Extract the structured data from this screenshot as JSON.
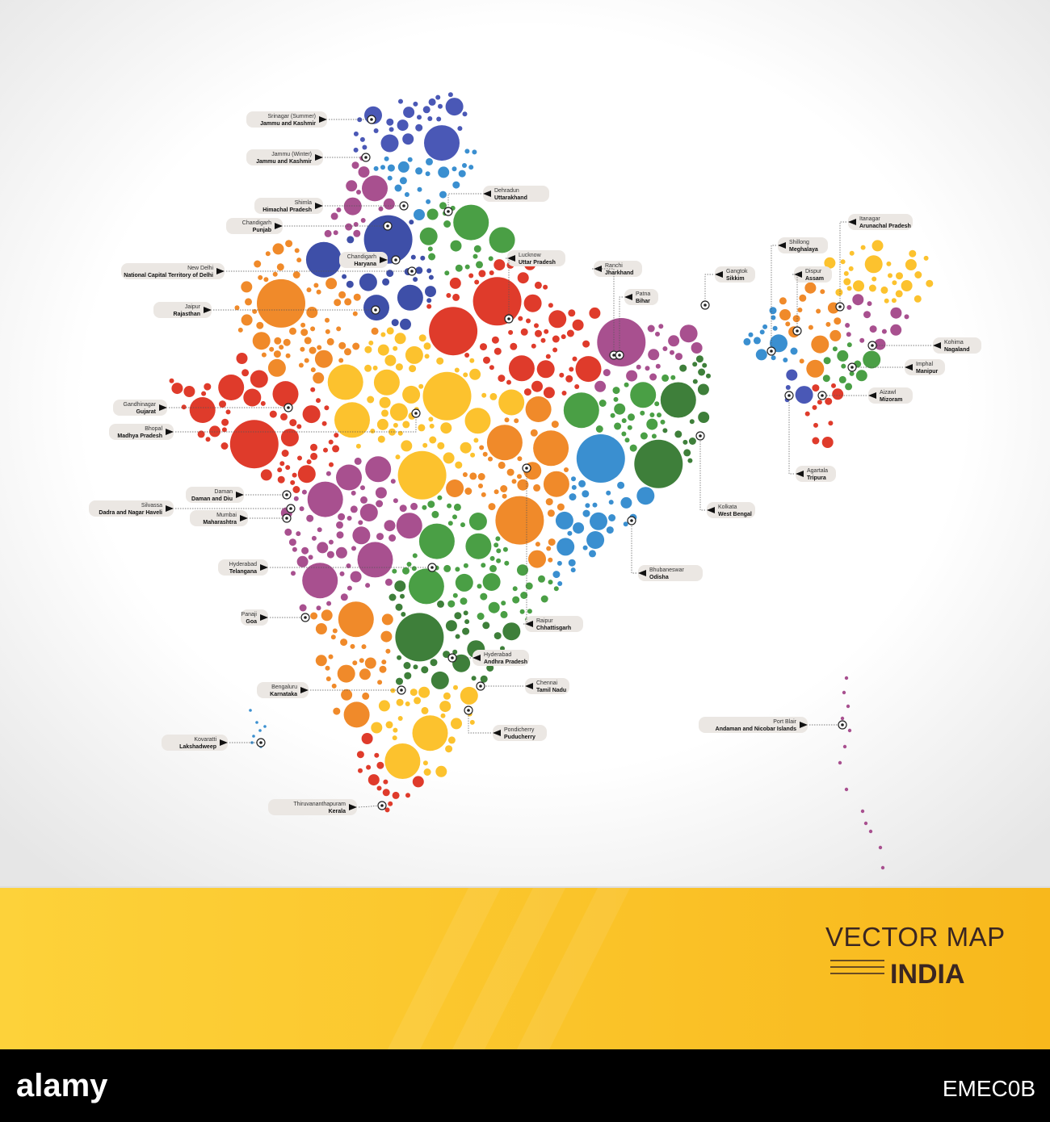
{
  "title": "VECTOR MAP",
  "subtitle": "INDIA",
  "labels": [
    {
      "capital": "Srinagar (Summer)",
      "state": "Jammu and Kashmir"
    },
    {
      "capital": "Jammu (Winter)",
      "state": "Jammu and Kashmir"
    },
    {
      "capital": "Dehradun",
      "state": "Uttarakhand"
    },
    {
      "capital": "Shimla",
      "state": "Himachal Pradesh"
    },
    {
      "capital": "Chandigarh",
      "state": "Punjab"
    },
    {
      "capital": "Chandigarh",
      "state": "Haryana"
    },
    {
      "capital": "New Delhi",
      "state": "National Capital Territory of Delhi"
    },
    {
      "capital": "Lucknow",
      "state": "Uttar Pradesh"
    },
    {
      "capital": "Ranchi",
      "state": "Jharkhand"
    },
    {
      "capital": "Patna",
      "state": "Bihar"
    },
    {
      "capital": "Gangtok",
      "state": "Sikkim"
    },
    {
      "capital": "Shillong",
      "state": "Meghalaya"
    },
    {
      "capital": "Itanagar",
      "state": "Arunachal Pradesh"
    },
    {
      "capital": "Dispur",
      "state": "Assam"
    },
    {
      "capital": "Jaipur",
      "state": "Rajasthan"
    },
    {
      "capital": "Kohima",
      "state": "Nagaland"
    },
    {
      "capital": "Imphal",
      "state": "Manipur"
    },
    {
      "capital": "Gandhinagar",
      "state": "Gujarat"
    },
    {
      "capital": "Aizawl",
      "state": "Mizoram"
    },
    {
      "capital": "Bhopal",
      "state": "Madhya Pradesh"
    },
    {
      "capital": "Agartala",
      "state": "Tripura"
    },
    {
      "capital": "Kolkata",
      "state": "West Bengal"
    },
    {
      "capital": "Daman",
      "state": "Daman and Diu"
    },
    {
      "capital": "Silvassa",
      "state": "Dadra and Nagar Haveli"
    },
    {
      "capital": "Mumbai",
      "state": "Maharashtra"
    },
    {
      "capital": "Bhubaneswar",
      "state": "Odisha"
    },
    {
      "capital": "Hyderabad",
      "state": "Telangana"
    },
    {
      "capital": "Panaji",
      "state": "Goa"
    },
    {
      "capital": "Raipur",
      "state": "Chhattisgarh"
    },
    {
      "capital": "Hyderabad",
      "state": "Andhra Pradesh"
    },
    {
      "capital": "Bengaluru",
      "state": "Karnataka"
    },
    {
      "capital": "Chennai",
      "state": "Tamil Nadu"
    },
    {
      "capital": "Pondicherry",
      "state": "Puducherry"
    },
    {
      "capital": "Port Blair",
      "state": "Andaman and Nicobar Islands"
    },
    {
      "capital": "Kovaratti",
      "state": "Lakshadweep"
    },
    {
      "capital": "Thiruvananthapuram",
      "state": "Kerala"
    }
  ],
  "footer": {
    "brand": "alamy",
    "image_id": "EMEC0B"
  }
}
